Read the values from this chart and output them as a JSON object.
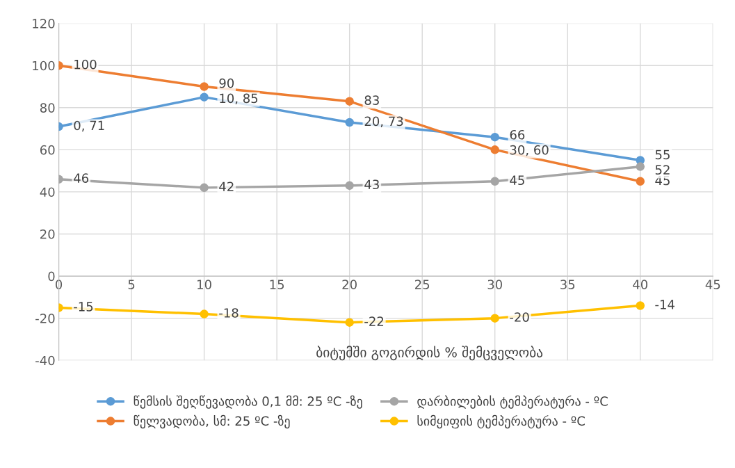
{
  "chart_data": {
    "type": "line",
    "xlabel": "ბიტუმში გოგირდის % შემცველობა",
    "x": [
      0,
      10,
      20,
      30,
      40
    ],
    "xlim": [
      0,
      45
    ],
    "xticks": [
      0,
      5,
      10,
      15,
      20,
      25,
      30,
      35,
      40,
      45
    ],
    "ylim": [
      -40,
      120
    ],
    "yticks": [
      -40,
      -20,
      0,
      20,
      40,
      60,
      80,
      100,
      120
    ],
    "grid": true,
    "legend": "bottom",
    "marker": "circle",
    "line_style": "solid",
    "series": [
      {
        "name": "წემსის შეღწევადობა 0,1 მმ: 25 ºC -ზე",
        "color": "#5b9bd5",
        "values": [
          71,
          85,
          73,
          66,
          55
        ],
        "value_labels": [
          "0, 71",
          "10, 85",
          "20, 73",
          "66",
          "55"
        ]
      },
      {
        "name": "წელვადობა, სმ: 25 ºC -ზე",
        "color": "#ed7d31",
        "values": [
          100,
          90,
          83,
          60,
          45
        ],
        "value_labels": [
          "100",
          "90",
          "83",
          "30, 60",
          "45"
        ]
      },
      {
        "name": "დარბილების ტემპერატურა - ºC",
        "color": "#a5a5a5",
        "values": [
          46,
          42,
          43,
          45,
          52
        ],
        "value_labels": [
          "46",
          "42",
          "43",
          "45",
          "52"
        ]
      },
      {
        "name": "სიმყიფის ტემპერატურა - ºC",
        "color": "#ffc000",
        "values": [
          -15,
          -18,
          -22,
          -20,
          -14
        ],
        "value_labels": [
          "-15",
          "-18",
          "-22",
          "-20",
          "-14"
        ]
      }
    ]
  }
}
